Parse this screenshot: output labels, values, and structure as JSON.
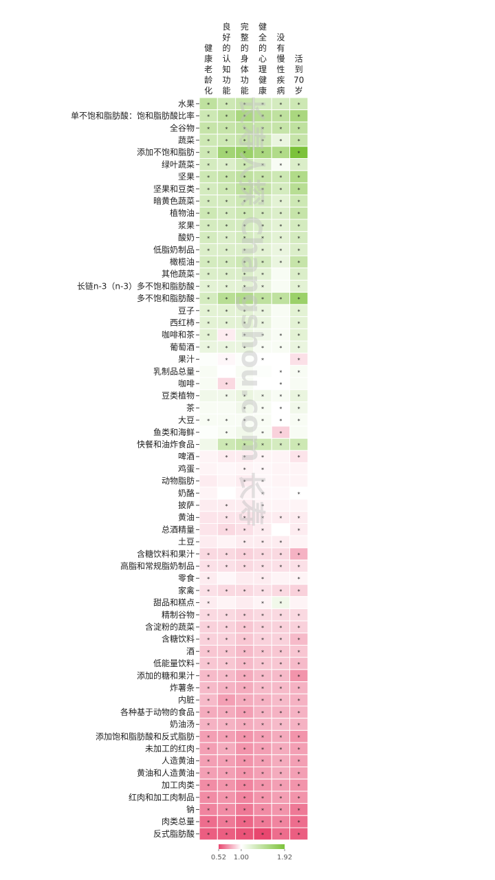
{
  "chart_data": {
    "type": "heatmap",
    "columns": [
      [
        "健",
        "康",
        "老",
        "龄",
        "化"
      ],
      [
        "良",
        "好",
        "的",
        "认",
        "知",
        "功",
        "能"
      ],
      [
        "完",
        "整",
        "的",
        "身",
        "体",
        "功",
        "能"
      ],
      [
        "健",
        "全",
        "的",
        "心",
        "理",
        "健",
        "康"
      ],
      [
        "没",
        "有",
        "慢",
        "性",
        "疾",
        "病"
      ],
      [
        "活",
        "到",
        "70",
        "岁"
      ]
    ],
    "rows": [
      "水果",
      "单不饱和脂肪酸：饱和脂肪酸比率",
      "全谷物",
      "蔬菜",
      "添加不饱和脂肪",
      "绿叶蔬菜",
      "坚果",
      "坚果和豆类",
      "暗黄色蔬菜",
      "植物油",
      "浆果",
      "酸奶",
      "低脂奶制品",
      "橄榄油",
      "其他蔬菜",
      "长链n-3（n-3）多不饱和脂肪酸",
      "多不饱和脂肪酸",
      "豆子",
      "西红柿",
      "咖啡和茶",
      "葡萄酒",
      "果汁",
      "乳制品总量",
      "咖啡",
      "豆类植物",
      "茶",
      "大豆",
      "鱼类和海鲜",
      "快餐和油炸食品",
      "啤酒",
      "鸡蛋",
      "动物脂肪",
      "奶酪",
      "披萨",
      "黄油",
      "总酒精量",
      "土豆",
      "含糖饮料和果汁",
      "高脂和常规脂奶制品",
      "零食",
      "家禽",
      "甜品和糕点",
      "精制谷物",
      "含淀粉的蔬菜",
      "含糖饮料",
      "酒",
      "低能量饮料",
      "添加的糖和果汁",
      "炸薯条",
      "内脏",
      "各种基于动物的食品",
      "奶油汤",
      "添加饱和脂肪酸和反式脂肪",
      "未加工的红肉",
      "人造黄油",
      "黄油和人造黄油",
      "加工肉类",
      "红肉和加工肉制品",
      "钠",
      "肉类总量",
      "反式脂肪酸"
    ],
    "values": [
      [
        1.45,
        1.35,
        1.4,
        1.3,
        1.3,
        1.35
      ],
      [
        1.35,
        1.45,
        1.6,
        1.5,
        1.45,
        1.6
      ],
      [
        1.4,
        1.4,
        1.45,
        1.4,
        1.4,
        1.45
      ],
      [
        1.35,
        1.35,
        1.4,
        1.35,
        1.15,
        1.4
      ],
      [
        1.35,
        1.65,
        1.7,
        1.6,
        1.55,
        1.92
      ],
      [
        1.3,
        1.25,
        1.35,
        1.25,
        1.05,
        1.25
      ],
      [
        1.35,
        1.4,
        1.45,
        1.4,
        1.35,
        1.55
      ],
      [
        1.3,
        1.35,
        1.45,
        1.4,
        1.3,
        1.5
      ],
      [
        1.3,
        1.3,
        1.35,
        1.3,
        1.2,
        1.35
      ],
      [
        1.35,
        1.3,
        1.35,
        1.3,
        1.25,
        1.4
      ],
      [
        1.3,
        1.3,
        1.3,
        1.25,
        1.2,
        1.3
      ],
      [
        1.3,
        1.25,
        1.3,
        1.25,
        1.2,
        1.3
      ],
      [
        1.25,
        1.25,
        1.25,
        1.2,
        1.15,
        1.25
      ],
      [
        1.3,
        1.3,
        1.35,
        1.3,
        1.15,
        1.4
      ],
      [
        1.25,
        1.25,
        1.25,
        1.2,
        1.05,
        1.25
      ],
      [
        1.2,
        1.2,
        1.2,
        1.15,
        1.05,
        1.2
      ],
      [
        1.3,
        1.5,
        1.55,
        1.45,
        1.45,
        1.7
      ],
      [
        1.2,
        1.2,
        1.2,
        1.15,
        1.05,
        1.2
      ],
      [
        1.2,
        1.2,
        1.2,
        1.15,
        1.05,
        1.2
      ],
      [
        1.2,
        0.95,
        1.15,
        1.1,
        1.05,
        1.2
      ],
      [
        1.15,
        1.15,
        1.15,
        1.05,
        1.05,
        1.15
      ],
      [
        1.02,
        0.98,
        1.02,
        1.0,
        1.0,
        0.92
      ],
      [
        1.05,
        1.0,
        1.05,
        1.02,
        1.0,
        1.05
      ],
      [
        1.05,
        0.9,
        1.05,
        1.0,
        1.0,
        1.05
      ],
      [
        1.1,
        1.1,
        1.15,
        1.1,
        1.05,
        1.15
      ],
      [
        1.05,
        1.05,
        1.1,
        1.05,
        1.0,
        1.1
      ],
      [
        1.05,
        1.05,
        1.05,
        1.05,
        1.0,
        1.05
      ],
      [
        1.02,
        1.05,
        1.1,
        1.05,
        0.88,
        1.05
      ],
      [
        1.1,
        1.35,
        1.4,
        1.35,
        1.3,
        1.35
      ],
      [
        0.97,
        0.95,
        0.95,
        0.97,
        0.97,
        0.93
      ],
      [
        0.97,
        0.98,
        0.97,
        0.98,
        0.97,
        0.97
      ],
      [
        0.95,
        0.97,
        0.95,
        0.98,
        0.97,
        0.97
      ],
      [
        0.97,
        1.0,
        0.97,
        0.98,
        0.98,
        1.0
      ],
      [
        0.95,
        0.95,
        0.95,
        0.97,
        0.97,
        0.97
      ],
      [
        0.93,
        0.93,
        0.93,
        0.95,
        0.95,
        0.95
      ],
      [
        0.93,
        0.9,
        0.92,
        0.95,
        1.0,
        0.95
      ],
      [
        0.95,
        0.97,
        0.95,
        0.95,
        0.95,
        0.97
      ],
      [
        0.9,
        0.9,
        0.88,
        0.9,
        0.9,
        0.8
      ],
      [
        0.92,
        0.92,
        0.9,
        0.92,
        0.92,
        0.92
      ],
      [
        0.95,
        0.98,
        0.95,
        0.95,
        0.97,
        0.97
      ],
      [
        0.92,
        0.9,
        0.9,
        0.92,
        0.9,
        0.88
      ],
      [
        0.95,
        0.97,
        0.95,
        0.97,
        1.1,
        0.97
      ],
      [
        0.9,
        0.9,
        0.88,
        0.9,
        0.9,
        0.9
      ],
      [
        0.88,
        0.88,
        0.85,
        0.88,
        0.88,
        0.88
      ],
      [
        0.88,
        0.88,
        0.85,
        0.88,
        0.88,
        0.82
      ],
      [
        0.85,
        0.85,
        0.82,
        0.85,
        0.85,
        0.85
      ],
      [
        0.85,
        0.85,
        0.82,
        0.85,
        0.85,
        0.82
      ],
      [
        0.82,
        0.82,
        0.78,
        0.82,
        0.82,
        0.72
      ],
      [
        0.82,
        0.8,
        0.78,
        0.82,
        0.82,
        0.8
      ],
      [
        0.82,
        0.75,
        0.78,
        0.8,
        0.82,
        0.8
      ],
      [
        0.78,
        0.78,
        0.75,
        0.8,
        0.8,
        0.8
      ],
      [
        0.8,
        0.8,
        0.78,
        0.8,
        0.82,
        0.8
      ],
      [
        0.75,
        0.75,
        0.72,
        0.75,
        0.78,
        0.72
      ],
      [
        0.75,
        0.78,
        0.72,
        0.75,
        0.78,
        0.75
      ],
      [
        0.75,
        0.75,
        0.72,
        0.75,
        0.78,
        0.75
      ],
      [
        0.75,
        0.75,
        0.72,
        0.75,
        0.78,
        0.75
      ],
      [
        0.7,
        0.72,
        0.68,
        0.72,
        0.75,
        0.72
      ],
      [
        0.7,
        0.72,
        0.68,
        0.72,
        0.75,
        0.72
      ],
      [
        0.68,
        0.7,
        0.65,
        0.7,
        0.72,
        0.65
      ],
      [
        0.62,
        0.65,
        0.6,
        0.65,
        0.68,
        0.62
      ],
      [
        0.58,
        0.58,
        0.55,
        0.52,
        0.62,
        0.58
      ]
    ],
    "significant": [
      [
        1,
        1,
        1,
        1,
        1,
        1
      ],
      [
        1,
        1,
        1,
        1,
        1,
        1
      ],
      [
        1,
        1,
        1,
        1,
        1,
        1
      ],
      [
        1,
        1,
        1,
        1,
        1,
        1
      ],
      [
        1,
        1,
        1,
        1,
        1,
        1
      ],
      [
        1,
        1,
        1,
        1,
        1,
        1
      ],
      [
        1,
        1,
        1,
        1,
        1,
        1
      ],
      [
        1,
        1,
        1,
        1,
        1,
        1
      ],
      [
        1,
        1,
        1,
        1,
        1,
        1
      ],
      [
        1,
        1,
        1,
        1,
        1,
        1
      ],
      [
        1,
        1,
        1,
        1,
        1,
        1
      ],
      [
        1,
        1,
        1,
        1,
        1,
        1
      ],
      [
        1,
        1,
        1,
        1,
        1,
        1
      ],
      [
        1,
        1,
        1,
        1,
        1,
        1
      ],
      [
        1,
        1,
        1,
        1,
        0,
        1
      ],
      [
        1,
        1,
        1,
        1,
        0,
        1
      ],
      [
        1,
        1,
        1,
        1,
        1,
        1
      ],
      [
        1,
        1,
        1,
        1,
        0,
        1
      ],
      [
        1,
        1,
        1,
        1,
        0,
        1
      ],
      [
        1,
        1,
        1,
        1,
        1,
        1
      ],
      [
        1,
        1,
        1,
        1,
        1,
        1
      ],
      [
        0,
        1,
        0,
        1,
        0,
        1
      ],
      [
        0,
        0,
        0,
        0,
        1,
        1
      ],
      [
        0,
        1,
        0,
        0,
        1,
        0
      ],
      [
        0,
        1,
        1,
        1,
        1,
        1
      ],
      [
        0,
        0,
        1,
        1,
        1,
        1
      ],
      [
        1,
        1,
        1,
        1,
        1,
        1
      ],
      [
        0,
        1,
        0,
        1,
        1,
        0
      ],
      [
        0,
        1,
        1,
        1,
        1,
        1
      ],
      [
        0,
        1,
        1,
        1,
        0,
        1
      ],
      [
        0,
        0,
        1,
        1,
        0,
        0
      ],
      [
        0,
        0,
        1,
        1,
        0,
        0
      ],
      [
        0,
        0,
        0,
        1,
        0,
        1
      ],
      [
        0,
        1,
        0,
        1,
        0,
        0
      ],
      [
        0,
        1,
        1,
        1,
        1,
        1
      ],
      [
        0,
        1,
        1,
        1,
        0,
        1
      ],
      [
        0,
        0,
        1,
        1,
        1,
        0
      ],
      [
        1,
        1,
        1,
        1,
        1,
        1
      ],
      [
        1,
        1,
        1,
        1,
        1,
        1
      ],
      [
        1,
        0,
        0,
        1,
        0,
        1
      ],
      [
        1,
        1,
        1,
        1,
        1,
        1
      ],
      [
        1,
        0,
        0,
        1,
        1,
        0
      ],
      [
        1,
        1,
        1,
        1,
        1,
        1
      ],
      [
        1,
        1,
        1,
        1,
        1,
        1
      ],
      [
        1,
        1,
        1,
        1,
        1,
        1
      ],
      [
        1,
        1,
        1,
        1,
        1,
        1
      ],
      [
        1,
        1,
        1,
        1,
        1,
        1
      ],
      [
        1,
        1,
        1,
        1,
        1,
        1
      ],
      [
        1,
        1,
        1,
        1,
        1,
        1
      ],
      [
        1,
        1,
        1,
        1,
        1,
        1
      ],
      [
        1,
        1,
        1,
        1,
        1,
        1
      ],
      [
        1,
        1,
        1,
        1,
        1,
        1
      ],
      [
        1,
        1,
        1,
        1,
        1,
        1
      ],
      [
        1,
        1,
        1,
        1,
        1,
        1
      ],
      [
        1,
        1,
        1,
        1,
        1,
        1
      ],
      [
        1,
        1,
        1,
        1,
        1,
        1
      ],
      [
        1,
        1,
        1,
        1,
        1,
        1
      ],
      [
        1,
        1,
        1,
        1,
        1,
        1
      ],
      [
        1,
        1,
        1,
        1,
        1,
        1
      ],
      [
        1,
        1,
        1,
        1,
        1,
        1
      ],
      [
        1,
        1,
        1,
        1,
        1,
        1
      ]
    ],
    "star_symbol": "*",
    "color_scale": {
      "min": 0.52,
      "mid": 1.0,
      "max": 1.92,
      "low_color": "#e8476f",
      "mid_color": "#ffffff",
      "high_color": "#7cc23a",
      "ticks": [
        "0.52",
        "1.00",
        "1.92"
      ]
    },
    "watermark": "长寿人探 Changshou.com 长寿",
    "watermark_color": "#bfbfbf"
  }
}
